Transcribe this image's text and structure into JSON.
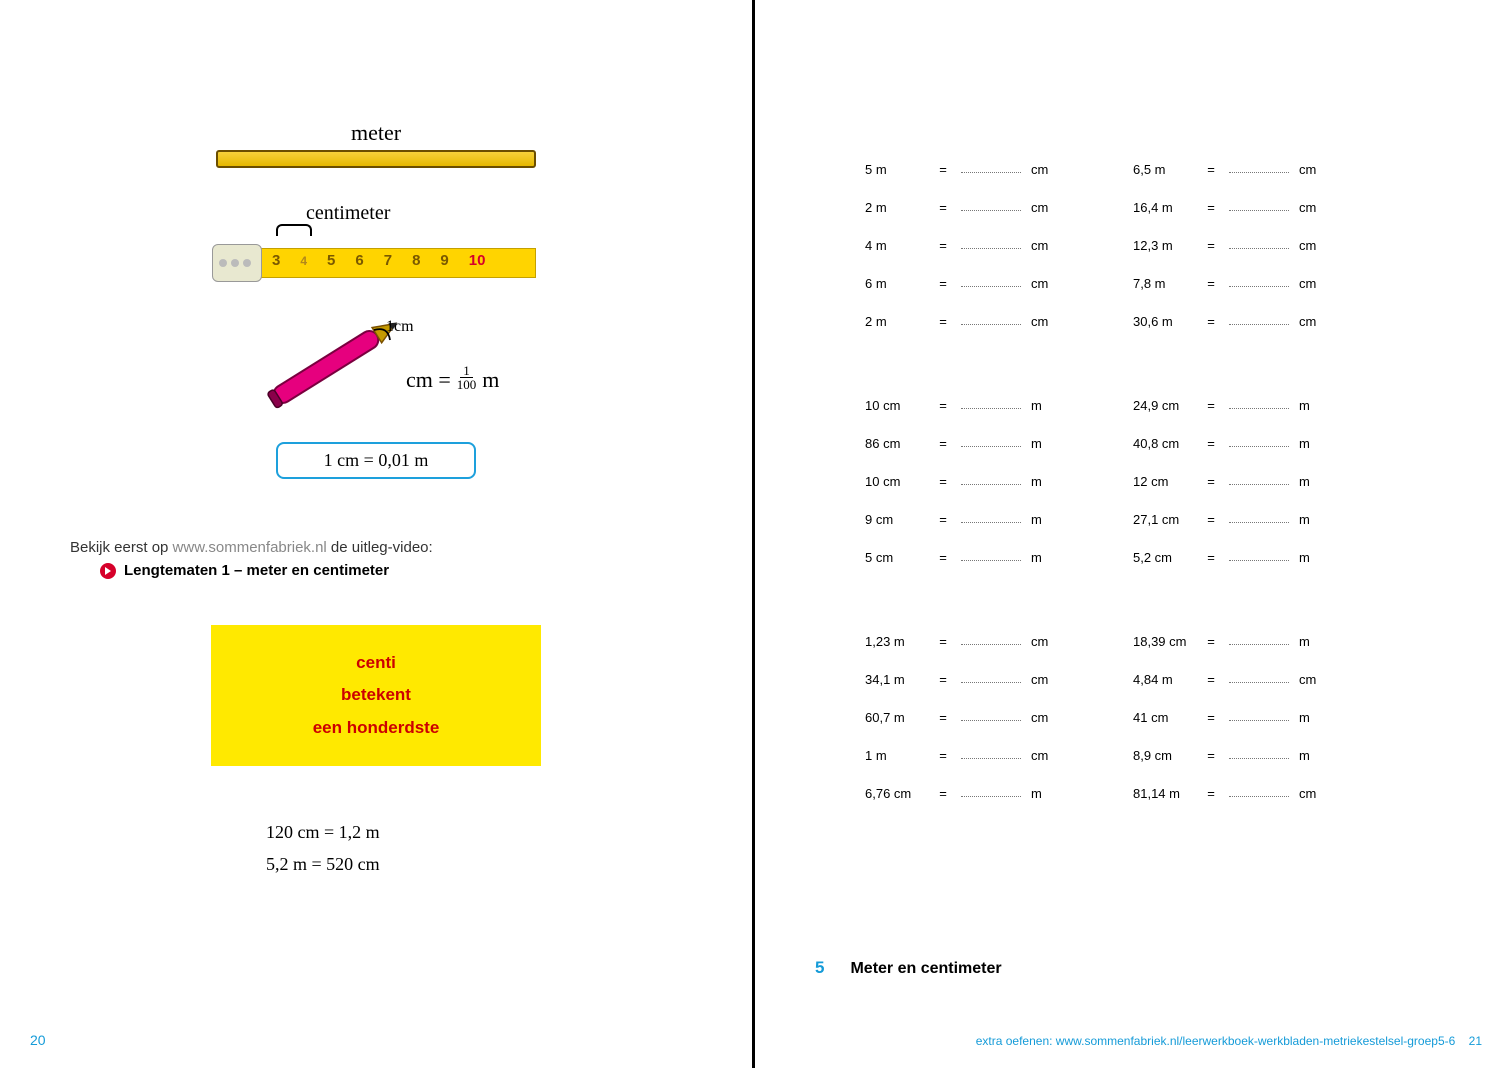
{
  "left": {
    "meter_label": "meter",
    "centimeter_label": "centimeter",
    "tape_nums": [
      "3",
      "4",
      "5",
      "6",
      "7",
      "8",
      "9",
      "10"
    ],
    "onecm_label": "1cm",
    "cm_fraction_lhs": "cm =",
    "cm_fraction_num": "1",
    "cm_fraction_den": "100",
    "cm_fraction_rhs": "m",
    "boxed_eq": "1 cm = 0,01 m",
    "video_intro": "Bekijk eerst op ",
    "video_url": "www.sommenfabriek.nl",
    "video_after": " de uitleg-video:",
    "video_title": "Lengtematen 1 – meter en centimeter",
    "yellow": {
      "l1": "centi",
      "l2": "betekent",
      "l3": "een honderdste"
    },
    "ex1": "120 cm = 1,2 m",
    "ex2": "5,2 m  = 520  cm",
    "page_num": "20"
  },
  "right": {
    "groupA_left": [
      {
        "lhs": "5 m",
        "unit": "cm"
      },
      {
        "lhs": "2 m",
        "unit": "cm"
      },
      {
        "lhs": "4 m",
        "unit": "cm"
      },
      {
        "lhs": "6 m",
        "unit": "cm"
      },
      {
        "lhs": "2 m",
        "unit": "cm"
      }
    ],
    "groupA_right": [
      {
        "lhs": "6,5 m",
        "unit": "cm"
      },
      {
        "lhs": "16,4 m",
        "unit": "cm"
      },
      {
        "lhs": "12,3 m",
        "unit": "cm"
      },
      {
        "lhs": "7,8 m",
        "unit": "cm"
      },
      {
        "lhs": "30,6 m",
        "unit": "cm"
      }
    ],
    "groupB_left": [
      {
        "lhs": "10 cm",
        "unit": "m"
      },
      {
        "lhs": "86 cm",
        "unit": "m"
      },
      {
        "lhs": "10 cm",
        "unit": "m"
      },
      {
        "lhs": "9 cm",
        "unit": "m"
      },
      {
        "lhs": "5 cm",
        "unit": "m"
      }
    ],
    "groupB_right": [
      {
        "lhs": "24,9 cm",
        "unit": "m"
      },
      {
        "lhs": "40,8 cm",
        "unit": "m"
      },
      {
        "lhs": "12 cm",
        "unit": "m"
      },
      {
        "lhs": "27,1 cm",
        "unit": "m"
      },
      {
        "lhs": "5,2 cm",
        "unit": "m"
      }
    ],
    "groupC_left": [
      {
        "lhs": "1,23 m",
        "unit": "cm"
      },
      {
        "lhs": "34,1 m",
        "unit": "cm"
      },
      {
        "lhs": "60,7 m",
        "unit": "cm"
      },
      {
        "lhs": "1 m",
        "unit": "cm"
      },
      {
        "lhs": "6,76 cm",
        "unit": "m"
      }
    ],
    "groupC_right": [
      {
        "lhs": "18,39 cm",
        "unit": "m"
      },
      {
        "lhs": "4,84 m",
        "unit": "cm"
      },
      {
        "lhs": "41 cm",
        "unit": "m"
      },
      {
        "lhs": "8,9 cm",
        "unit": "m"
      },
      {
        "lhs": "81,14 m",
        "unit": "cm"
      }
    ],
    "section_num": "5",
    "section_title": "Meter en centimeter",
    "footer_text": "extra oefenen: www.sommenfabriek.nl/leerwerkboek-werkbladen-metriekestelsel-groep5-6",
    "page_num": "21"
  },
  "colors": {
    "accent": "#159bd8",
    "yellow": "#ffe900",
    "red": "#cc0000",
    "pen": "#e6007e"
  }
}
